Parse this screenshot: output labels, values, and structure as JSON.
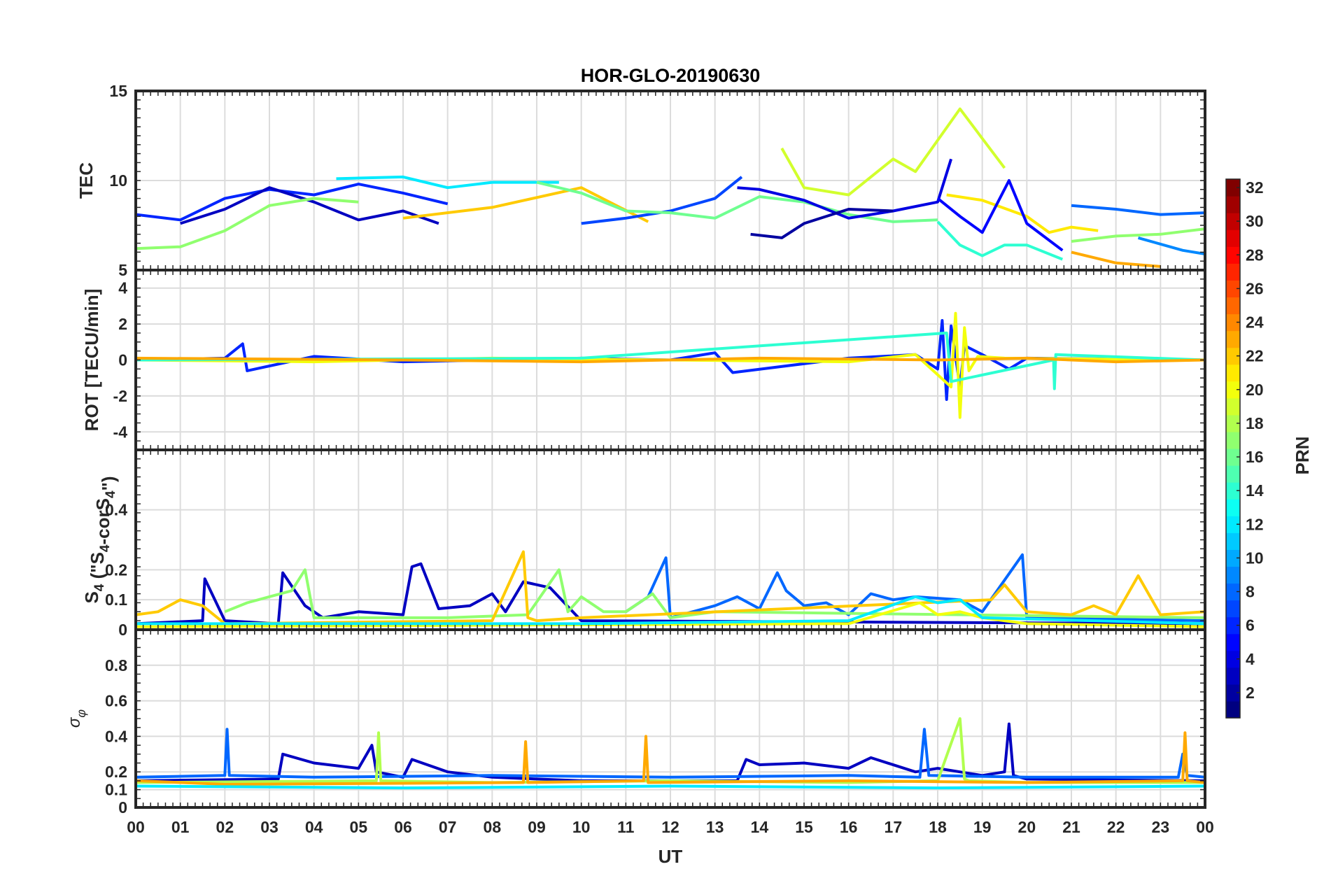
{
  "chart_data": {
    "type": "line",
    "title": "HOR-GLO-20190630",
    "xlabel": "UT",
    "x_tick_labels": [
      "00",
      "01",
      "02",
      "03",
      "04",
      "05",
      "06",
      "07",
      "08",
      "09",
      "10",
      "11",
      "12",
      "13",
      "14",
      "15",
      "16",
      "17",
      "18",
      "19",
      "20",
      "21",
      "22",
      "23",
      "00"
    ],
    "xlim_hours": [
      0,
      24
    ],
    "grid": true,
    "panels": [
      {
        "id": "tec",
        "ylabel": "TEC",
        "ylim": [
          5,
          15
        ],
        "yticks": [
          5,
          10,
          15
        ],
        "series": [
          {
            "prn": 6,
            "x": [
              0,
              1,
              2,
              3,
              4,
              5,
              6,
              7
            ],
            "y": [
              8.1,
              7.8,
              9.0,
              9.5,
              9.2,
              9.8,
              9.3,
              8.7
            ]
          },
          {
            "prn": 3,
            "x": [
              1,
              2,
              3,
              4,
              5,
              6,
              6.8
            ],
            "y": [
              7.6,
              8.4,
              9.6,
              8.8,
              7.8,
              8.3,
              7.6
            ]
          },
          {
            "prn": 12,
            "x": [
              4.5,
              6,
              7,
              8,
              9.5
            ],
            "y": [
              10.1,
              10.2,
              9.6,
              9.9,
              9.9
            ]
          },
          {
            "prn": 22,
            "x": [
              6,
              8,
              10,
              11.5
            ],
            "y": [
              7.9,
              8.5,
              9.6,
              7.7
            ]
          },
          {
            "prn": 17,
            "x": [
              0,
              1,
              2,
              3,
              4,
              5
            ],
            "y": [
              6.2,
              6.3,
              7.2,
              8.6,
              9.0,
              8.8
            ]
          },
          {
            "prn": 7,
            "x": [
              10,
              11,
              12,
              13,
              13.6
            ],
            "y": [
              7.6,
              7.9,
              8.3,
              9.0,
              10.2
            ]
          },
          {
            "prn": 16,
            "x": [
              9,
              10,
              11,
              12,
              13,
              14,
              15,
              16,
              17,
              18
            ],
            "y": [
              9.9,
              9.3,
              8.3,
              8.2,
              7.9,
              9.1,
              8.8,
              8.1,
              7.7,
              7.8
            ]
          },
          {
            "prn": 4,
            "x": [
              13.5,
              14,
              15,
              16,
              17,
              18,
              18.3
            ],
            "y": [
              9.6,
              9.5,
              8.9,
              7.9,
              8.3,
              8.8,
              11.2
            ]
          },
          {
            "prn": 19,
            "x": [
              14.5,
              15,
              16,
              17,
              17.5,
              18.5,
              19.5
            ],
            "y": [
              11.8,
              9.6,
              9.2,
              11.2,
              10.5,
              14.0,
              10.7
            ]
          },
          {
            "prn": 2,
            "x": [
              13.8,
              14.5,
              15,
              16,
              17
            ],
            "y": [
              7.0,
              6.8,
              7.6,
              8.4,
              8.3
            ]
          },
          {
            "prn": 21,
            "x": [
              18.2,
              19,
              20,
              20.5,
              21,
              21.6
            ],
            "y": [
              9.2,
              8.9,
              8.0,
              7.1,
              7.4,
              7.2
            ]
          },
          {
            "prn": 5,
            "x": [
              18,
              18.5,
              19,
              19.6,
              20,
              20.8
            ],
            "y": [
              9.0,
              8.0,
              7.1,
              10.0,
              7.6,
              6.1
            ]
          },
          {
            "prn": 14,
            "x": [
              18,
              18.5,
              19,
              19.5,
              20,
              20.8
            ],
            "y": [
              7.7,
              6.4,
              5.8,
              6.4,
              6.4,
              5.6
            ]
          },
          {
            "prn": 8,
            "x": [
              21,
              22,
              23,
              24
            ],
            "y": [
              8.6,
              8.4,
              8.1,
              8.2
            ]
          },
          {
            "prn": 23,
            "x": [
              21,
              22,
              23
            ],
            "y": [
              6.0,
              5.4,
              5.2
            ]
          },
          {
            "prn": 17,
            "x": [
              21,
              22,
              23,
              24
            ],
            "y": [
              6.6,
              6.9,
              7.0,
              7.3
            ]
          },
          {
            "prn": 9,
            "x": [
              22.5,
              23.5,
              24
            ],
            "y": [
              6.8,
              6.1,
              5.9
            ]
          }
        ]
      },
      {
        "id": "rot",
        "ylabel": "ROT [TECU/min]",
        "ylim": [
          -5,
          5
        ],
        "yticks": [
          -4,
          -2,
          0,
          2,
          4
        ],
        "series": [
          {
            "prn": 6,
            "x": [
              0,
              2,
              2.4,
              2.5,
              4,
              6,
              8,
              10,
              12,
              13,
              13.4,
              16,
              17.5,
              18,
              18.1,
              18.2,
              18.3,
              18.5,
              18.6,
              19,
              19.6,
              20,
              24
            ],
            "y": [
              0,
              0.1,
              0.9,
              -0.6,
              0.2,
              -0.1,
              0,
              0.1,
              0,
              0.4,
              -0.7,
              0.1,
              0.3,
              -0.5,
              2.2,
              -2.2,
              1.9,
              -1.5,
              0.8,
              0.3,
              -0.5,
              0.1,
              0
            ]
          },
          {
            "prn": 20,
            "x": [
              0,
              4,
              8,
              12,
              16,
              17.5,
              18.3,
              18.4,
              18.5,
              18.6,
              18.7,
              18.9,
              19.5,
              24
            ],
            "y": [
              0,
              -0.1,
              0.1,
              0,
              -0.1,
              0.3,
              -1.5,
              2.6,
              -3.2,
              1.8,
              -0.6,
              0.2,
              0.1,
              0
            ]
          },
          {
            "prn": 14,
            "x": [
              0,
              10,
              18.2,
              18.3,
              20.6,
              20.62,
              20.65,
              24
            ],
            "y": [
              0,
              0.1,
              1.5,
              -1.2,
              0,
              -1.6,
              0.3,
              0
            ]
          },
          {
            "prn": 23,
            "x": [
              0,
              6,
              10,
              14,
              18,
              20,
              22,
              24
            ],
            "y": [
              0.1,
              0,
              -0.1,
              0.1,
              0,
              0.1,
              -0.1,
              0
            ]
          }
        ]
      },
      {
        "id": "s4",
        "ylabel": "S4 (\"S4-corS4\")",
        "ylim": [
          0,
          0.6
        ],
        "yticks": [
          0,
          0.1,
          0.2,
          0.4
        ],
        "series": [
          {
            "prn": 3,
            "x": [
              0,
              1.5,
              1.55,
              2,
              3.2,
              3.3,
              3.8,
              4.2,
              5,
              6,
              6.2,
              6.4,
              6.8,
              7.5,
              8,
              8.3,
              8.7,
              9.3,
              10,
              24
            ],
            "y": [
              0.02,
              0.03,
              0.17,
              0.03,
              0.02,
              0.19,
              0.08,
              0.04,
              0.06,
              0.05,
              0.21,
              0.22,
              0.07,
              0.08,
              0.12,
              0.06,
              0.16,
              0.14,
              0.03,
              0.02
            ]
          },
          {
            "prn": 8,
            "x": [
              11,
              11.5,
              11.9,
              12,
              13,
              13.5,
              14,
              14.4,
              14.6,
              15,
              15.5,
              16,
              16.5,
              17,
              17.5,
              18.5,
              19,
              19.9,
              20,
              24
            ],
            "y": [
              0.06,
              0.11,
              0.24,
              0.04,
              0.08,
              0.11,
              0.07,
              0.19,
              0.13,
              0.08,
              0.09,
              0.05,
              0.12,
              0.1,
              0.11,
              0.1,
              0.06,
              0.25,
              0.04,
              0.03
            ]
          },
          {
            "prn": 17,
            "x": [
              2,
              2.5,
              3.5,
              3.8,
              4,
              7,
              8.8,
              9.5,
              9.7,
              10,
              10.5,
              11,
              11.6,
              12,
              13,
              24
            ],
            "y": [
              0.06,
              0.09,
              0.13,
              0.2,
              0.04,
              0.04,
              0.05,
              0.2,
              0.06,
              0.11,
              0.06,
              0.06,
              0.12,
              0.04,
              0.06,
              0.04
            ]
          },
          {
            "prn": 22,
            "x": [
              0,
              0.5,
              1,
              1.5,
              2,
              8,
              8.7,
              8.8,
              9,
              10,
              19.2,
              19.5,
              20,
              21,
              21.5,
              22,
              22.5,
              23,
              24
            ],
            "y": [
              0.05,
              0.06,
              0.1,
              0.08,
              0.02,
              0.03,
              0.26,
              0.04,
              0.03,
              0.04,
              0.1,
              0.15,
              0.06,
              0.05,
              0.08,
              0.05,
              0.18,
              0.05,
              0.06
            ]
          },
          {
            "prn": 20,
            "x": [
              0,
              16,
              17.6,
              18,
              18.5,
              19,
              20,
              24
            ],
            "y": [
              0.01,
              0.02,
              0.09,
              0.05,
              0.06,
              0.04,
              0.02,
              0.01
            ]
          },
          {
            "prn": 12,
            "x": [
              0,
              10,
              16,
              17.5,
              18,
              18.5,
              19,
              24
            ],
            "y": [
              0.02,
              0.02,
              0.03,
              0.11,
              0.09,
              0.1,
              0.04,
              0.02
            ]
          }
        ]
      },
      {
        "id": "sigma",
        "ylabel": "σφ",
        "ylim": [
          0,
          1
        ],
        "yticks": [
          0,
          0.1,
          0.2,
          0.4,
          0.6,
          0.8
        ],
        "series": [
          {
            "prn": 3,
            "x": [
              0,
              3.2,
              3.3,
              4,
              5,
              5.3,
              5.4,
              6,
              6.2,
              7,
              8,
              9,
              10,
              13.5,
              13.7,
              14,
              15,
              16,
              16.5,
              17.5,
              18,
              18.5,
              19,
              19.5,
              19.6,
              19.7,
              20,
              24
            ],
            "y": [
              0.15,
              0.16,
              0.3,
              0.25,
              0.22,
              0.35,
              0.2,
              0.17,
              0.27,
              0.2,
              0.17,
              0.16,
              0.15,
              0.15,
              0.27,
              0.24,
              0.25,
              0.22,
              0.28,
              0.2,
              0.22,
              0.2,
              0.18,
              0.2,
              0.47,
              0.18,
              0.16,
              0.15
            ]
          },
          {
            "prn": 8,
            "x": [
              0,
              2,
              2.05,
              2.1,
              4,
              8,
              12,
              16,
              17.6,
              17.7,
              17.8,
              20,
              23.4,
              23.5,
              23.6,
              24
            ],
            "y": [
              0.17,
              0.18,
              0.44,
              0.18,
              0.17,
              0.18,
              0.17,
              0.18,
              0.17,
              0.44,
              0.18,
              0.17,
              0.17,
              0.3,
              0.18,
              0.17
            ]
          },
          {
            "prn": 18,
            "x": [
              0,
              5.4,
              5.45,
              5.5,
              8,
              12,
              16,
              18,
              18.5,
              18.6,
              18.7,
              20,
              24
            ],
            "y": [
              0.14,
              0.15,
              0.42,
              0.15,
              0.14,
              0.15,
              0.14,
              0.15,
              0.5,
              0.16,
              0.15,
              0.14,
              0.14
            ]
          },
          {
            "prn": 23,
            "x": [
              0,
              1,
              2,
              8.7,
              8.75,
              8.8,
              11.4,
              11.45,
              11.5,
              16,
              20,
              23.5,
              23.55,
              23.6,
              24
            ],
            "y": [
              0.15,
              0.14,
              0.13,
              0.14,
              0.37,
              0.14,
              0.15,
              0.4,
              0.14,
              0.15,
              0.14,
              0.15,
              0.42,
              0.15,
              0.14
            ]
          },
          {
            "prn": 12,
            "x": [
              0,
              6,
              12,
              18,
              24
            ],
            "y": [
              0.12,
              0.11,
              0.12,
              0.11,
              0.12
            ]
          }
        ]
      }
    ],
    "colorbar": {
      "label": "PRN",
      "range": [
        1,
        32
      ],
      "colormap": "jet",
      "tick_labels": [
        "2",
        "4",
        "6",
        "8",
        "10",
        "12",
        "14",
        "16",
        "18",
        "20",
        "22",
        "24",
        "26",
        "28",
        "30",
        "32"
      ]
    }
  }
}
